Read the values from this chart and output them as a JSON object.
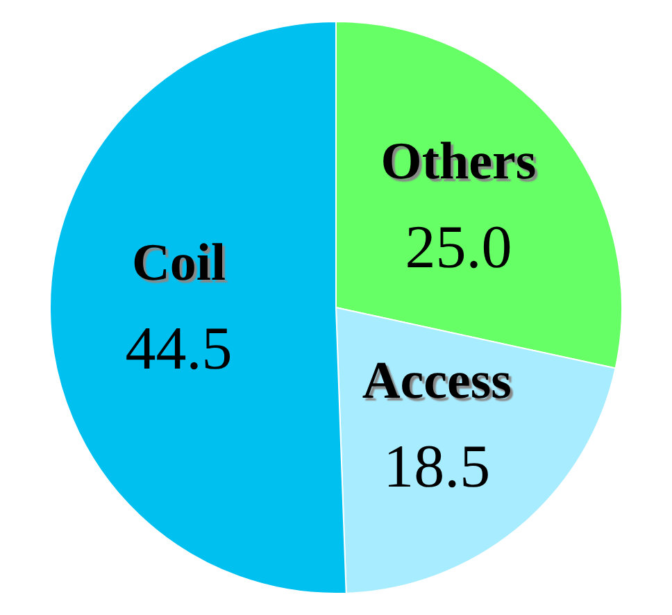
{
  "chart_data": {
    "type": "pie",
    "categories": [
      "Others",
      "Access",
      "Coil"
    ],
    "values": [
      25.0,
      18.5,
      44.5
    ],
    "colors": [
      "#66ff66",
      "#a8ecff",
      "#00c0f0"
    ],
    "value_labels": [
      "25.0",
      "18.5",
      "44.5"
    ]
  }
}
